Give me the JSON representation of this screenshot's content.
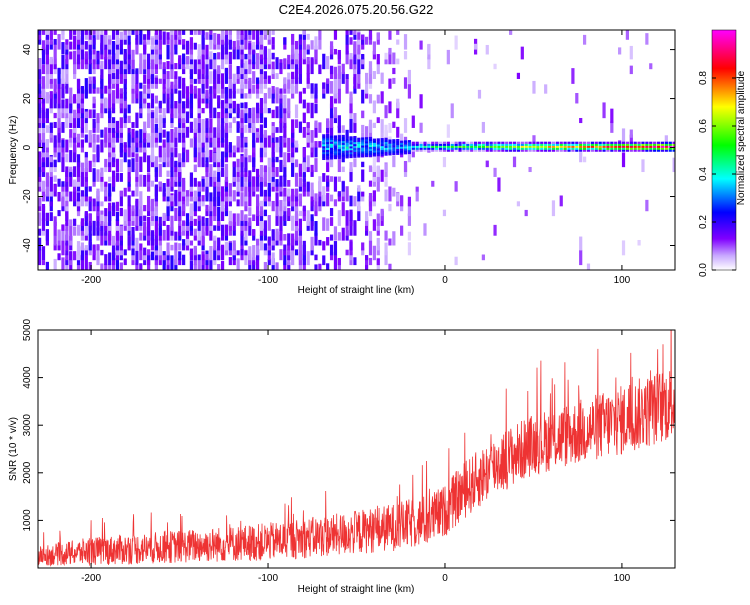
{
  "title": "C2E4.2026.075.20.56.G22",
  "chart_data": [
    {
      "type": "heatmap",
      "title": "C2E4.2026.075.20.56.G22",
      "xlabel": "Height of straight line (km)",
      "ylabel": "Frequency (Hz)",
      "xlim": [
        -230,
        130
      ],
      "ylim": [
        -50,
        48
      ],
      "x_ticks": [
        -200,
        -100,
        0,
        100
      ],
      "y_ticks": [
        -40,
        -20,
        0,
        20,
        40
      ],
      "colorbar": {
        "label": "Normalized spectral amplitude",
        "range": [
          0,
          1
        ],
        "ticks": [
          "0.0",
          "0.2",
          "0.4",
          "0.6",
          "0.8"
        ],
        "tick_values": [
          0,
          0.2,
          0.4,
          0.6,
          0.8
        ],
        "colors": [
          "#ffffff",
          "#8000ff",
          "#0000ff",
          "#00ffff",
          "#00ff00",
          "#ffff00",
          "#ff0000",
          "#ff00ff"
        ]
      },
      "features": {
        "noise_region_x": [
          -230,
          -10
        ],
        "signal_line_start_x": -70,
        "signal_line_frequency": 0
      }
    },
    {
      "type": "line",
      "xlabel": "Height of straight line (km)",
      "ylabel": "SNR (10 * v/v)",
      "xlim": [
        -230,
        130
      ],
      "ylim": [
        0,
        5000
      ],
      "x_ticks": [
        -200,
        -100,
        0,
        100
      ],
      "y_ticks": [
        1000,
        2000,
        3000,
        4000,
        5000
      ],
      "series": [
        {
          "color": "#ee3333",
          "trend_x": [
            -230,
            -200,
            -150,
            -100,
            -60,
            -30,
            -10,
            0,
            10,
            30,
            50,
            80,
            100,
            130
          ],
          "trend_y": [
            250,
            350,
            450,
            550,
            700,
            850,
            1000,
            1200,
            1600,
            2200,
            2600,
            2900,
            3100,
            3500
          ],
          "spread": [
            200,
            300,
            350,
            400,
            450,
            500,
            550,
            550,
            600,
            650,
            650,
            700,
            750,
            800
          ]
        }
      ]
    }
  ]
}
